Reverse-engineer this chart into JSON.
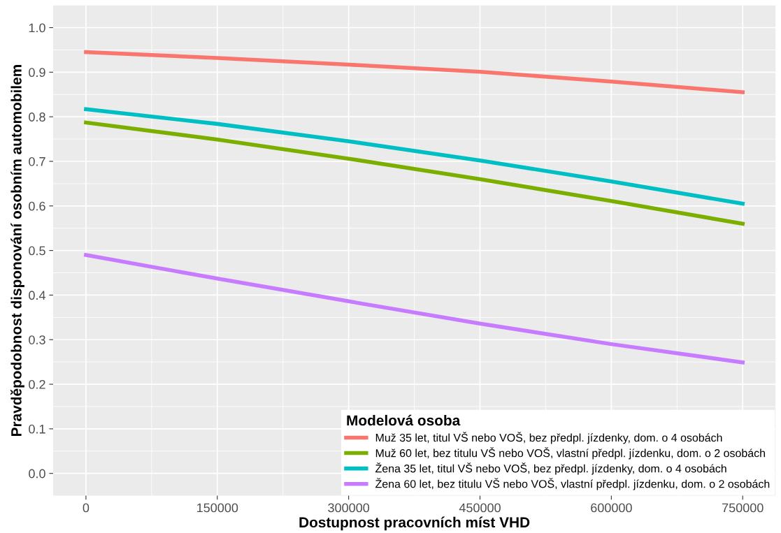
{
  "chart_data": {
    "type": "line",
    "xlabel": "Dostupnost pracovních míst VHD",
    "ylabel": "Pravděpodobnost disponování osobním automobilem",
    "legend_title": "Modelová osoba",
    "x": [
      0,
      150000,
      300000,
      450000,
      600000,
      750000
    ],
    "series": [
      {
        "name": "Muž 35 let, titul VŠ nebo VOŠ, bez předpl. jízdenky, dom. o 4 osobách",
        "color": "#f8766d",
        "values": [
          0.945,
          0.932,
          0.917,
          0.901,
          0.879,
          0.855
        ]
      },
      {
        "name": "Muž 60 let, bez titulu VŠ nebo VOŠ, vlastní předpl. jízdenku, dom. o 2 osobách",
        "color": "#7cae00",
        "values": [
          0.787,
          0.749,
          0.706,
          0.66,
          0.611,
          0.56
        ]
      },
      {
        "name": "Žena 35 let, titul VŠ nebo VOŠ, bez předpl. jízdenky, dom. o 4 osobách",
        "color": "#00bfc4",
        "values": [
          0.817,
          0.784,
          0.745,
          0.702,
          0.655,
          0.605
        ]
      },
      {
        "name": "Žena 60 let, bez titulu VŠ nebo VOŠ, vlastní předpl. jízdenku, dom. o 2 osobách",
        "color": "#c77cff",
        "values": [
          0.49,
          0.437,
          0.386,
          0.336,
          0.29,
          0.249
        ]
      }
    ],
    "xlim": [
      -37500,
      787500
    ],
    "ylim": [
      -0.05,
      1.05
    ],
    "xticks": [
      0,
      150000,
      300000,
      450000,
      600000,
      750000
    ],
    "yticks": [
      {
        "value": 0.0,
        "label": "0.0"
      },
      {
        "value": 0.1,
        "label": "0.1"
      },
      {
        "value": 0.2,
        "label": "0.2"
      },
      {
        "value": 0.3,
        "label": "0.3"
      },
      {
        "value": 0.4,
        "label": "0.4"
      },
      {
        "value": 0.5,
        "label": "0.5"
      },
      {
        "value": 0.6,
        "label": "0.6"
      },
      {
        "value": 0.7,
        "label": "0.7"
      },
      {
        "value": 0.8,
        "label": "0.8"
      },
      {
        "value": 0.9,
        "label": "0.9"
      },
      {
        "value": 1.0,
        "label": "1.0"
      }
    ],
    "grid": true,
    "legend": "bottom right",
    "marker": "none",
    "line_style": "solid"
  }
}
